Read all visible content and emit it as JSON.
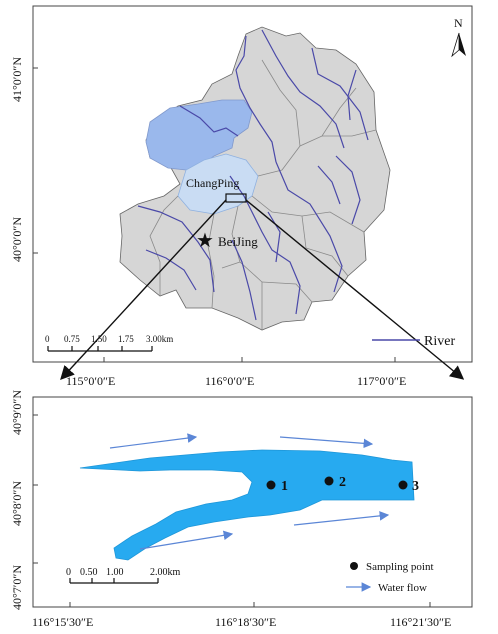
{
  "top_map": {
    "north_label": "N",
    "city_label": "BeiJing",
    "district_label": "ChangPing",
    "lat_labels": [
      "41°0′0″N",
      "40°0′0″N"
    ],
    "lon_labels": [
      "115°0′0″E",
      "116°0′0″E",
      "117°0′0″E"
    ],
    "scale_ticks": [
      "0",
      "0.75",
      "1.50",
      "1.75",
      "3.00km"
    ],
    "legend_river": "River",
    "colors": {
      "region_fill": "#d6d6d6",
      "highlight_blue": "#9ab8ec",
      "light_blue": "#c9dcf3",
      "river": "#4a49a8"
    }
  },
  "bottom_map": {
    "lat_labels": [
      "40°9′0″N",
      "40°8′0″N",
      "40°7′0″N"
    ],
    "lon_labels": [
      "116°15′30″E",
      "116°18′30″E",
      "116°21′30″E"
    ],
    "points": [
      "1",
      "2",
      "3"
    ],
    "scale_ticks": [
      "0",
      "0.50",
      "1.00",
      "2.00km"
    ],
    "legend_sampling": "Sampling point",
    "legend_flow": "Water flow",
    "colors": {
      "water": "#27aaf0",
      "arrow": "#5b86d6"
    }
  }
}
